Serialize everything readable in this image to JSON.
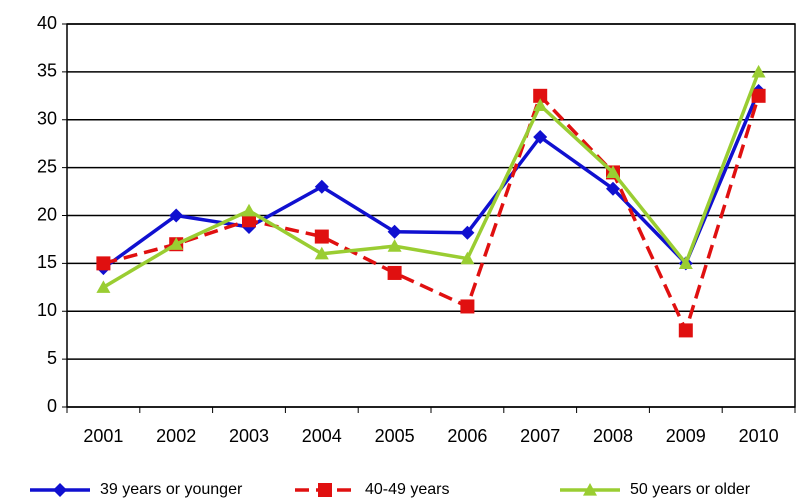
{
  "chart_data": {
    "type": "line",
    "categories": [
      "2001",
      "2002",
      "2003",
      "2004",
      "2005",
      "2006",
      "2007",
      "2008",
      "2009",
      "2010"
    ],
    "series": [
      {
        "name": "39 years or younger",
        "color": "#1010d0",
        "marker": "diamond",
        "linestyle": "solid",
        "values": [
          14.5,
          20,
          18.8,
          23,
          18.3,
          18.2,
          28.2,
          22.8,
          15,
          33
        ]
      },
      {
        "name": "40-49 years",
        "color": "#e01010",
        "marker": "square",
        "linestyle": "dashed",
        "values": [
          15,
          17,
          19.5,
          17.8,
          14,
          10.5,
          32.5,
          24.5,
          8,
          32.5
        ]
      },
      {
        "name": "50 years or older",
        "color": "#9acd32",
        "marker": "triangle",
        "linestyle": "solid",
        "values": [
          12.5,
          17,
          20.5,
          16,
          16.8,
          15.5,
          31.5,
          24.5,
          15,
          35
        ]
      }
    ],
    "ylim": [
      0,
      40
    ],
    "yticks": [
      0,
      5,
      10,
      15,
      20,
      25,
      30,
      35,
      40
    ],
    "grid": true
  }
}
